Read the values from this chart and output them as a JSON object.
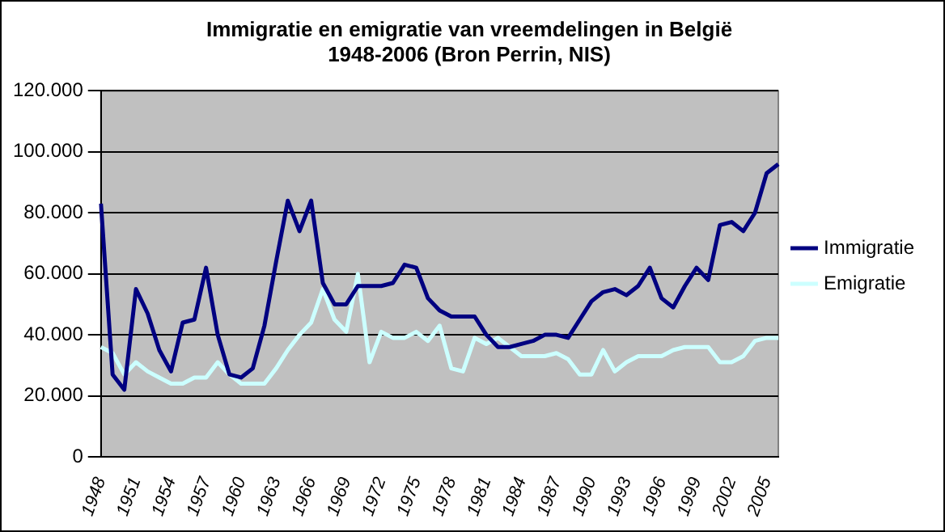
{
  "chart_data": {
    "type": "line",
    "title": "Immigratie en emigratie van vreemdelingen in België\n1948-2006 (Bron Perrin, NIS)",
    "categories": [
      "1948",
      null,
      null,
      "1951",
      null,
      null,
      "1954",
      null,
      null,
      "1957",
      null,
      null,
      "1960",
      null,
      null,
      "1963",
      null,
      null,
      "1966",
      null,
      null,
      "1969",
      null,
      null,
      "1972",
      null,
      null,
      "1975",
      null,
      null,
      "1978",
      null,
      null,
      "1981",
      null,
      null,
      "1984",
      null,
      null,
      "1987",
      null,
      null,
      "1990",
      null,
      null,
      "1993",
      null,
      null,
      "1996",
      null,
      null,
      "1999",
      null,
      null,
      "2002",
      null,
      null,
      "2005",
      null
    ],
    "series": [
      {
        "name": "Immigratie",
        "color": "#000080",
        "values": [
          83000,
          27000,
          22000,
          55000,
          47000,
          35000,
          28000,
          44000,
          45000,
          62000,
          40000,
          27000,
          26000,
          29000,
          43000,
          64000,
          84000,
          74000,
          84000,
          57000,
          50000,
          50000,
          56000,
          56000,
          56000,
          57000,
          63000,
          62000,
          52000,
          48000,
          46000,
          46000,
          46000,
          40000,
          36000,
          36000,
          37000,
          38000,
          40000,
          40000,
          39000,
          45000,
          51000,
          54000,
          55000,
          53000,
          56000,
          62000,
          52000,
          49000,
          56000,
          62000,
          58000,
          76000,
          77000,
          74000,
          80000,
          93000,
          96000
        ]
      },
      {
        "name": "Emigratie",
        "color": "#ccffff",
        "values": [
          36000,
          34000,
          27000,
          31000,
          28000,
          26000,
          24000,
          24000,
          26000,
          26000,
          31000,
          27000,
          24000,
          24000,
          24000,
          29000,
          35000,
          40000,
          44000,
          55000,
          45000,
          41000,
          60000,
          31000,
          41000,
          39000,
          39000,
          41000,
          38000,
          43000,
          29000,
          28000,
          39000,
          37000,
          39000,
          36000,
          33000,
          33000,
          33000,
          34000,
          32000,
          27000,
          27000,
          35000,
          28000,
          31000,
          33000,
          33000,
          33000,
          35000,
          36000,
          36000,
          36000,
          31000,
          31000,
          33000,
          38000,
          39000,
          39000
        ]
      }
    ],
    "ylim": [
      0,
      120000
    ],
    "yticks": [
      0,
      {
        "value": 20000,
        "label": "20.000"
      },
      {
        "value": 40000,
        "label": "40.000"
      },
      {
        "value": 60000,
        "label": "60.000"
      },
      {
        "value": 80000,
        "label": "80.000"
      },
      {
        "value": 100000,
        "label": "100.000"
      },
      {
        "value": 120000,
        "label": "120.000"
      }
    ],
    "grid": "y",
    "legend": "right",
    "marker": "none",
    "line_style": "solid"
  }
}
